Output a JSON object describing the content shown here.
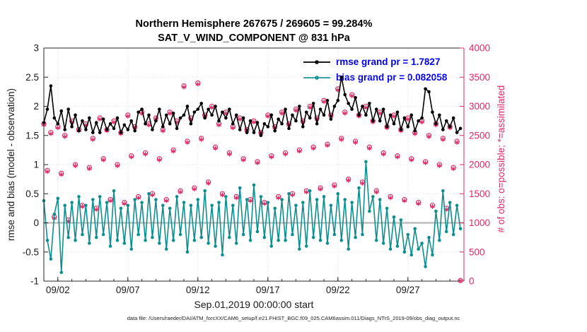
{
  "title": {
    "line1": "Northern Hemisphere 267675 / 269605 = 99.284%",
    "line2": "SAT_V_WIND_COMPONENT @ 831 hPa"
  },
  "axes_labels": {
    "left": "rmse and bias (model - observation)",
    "right": "# of obs: o=possible; *=assimilated",
    "x": "Sep.01,2019 00:00:00 start"
  },
  "legend": [
    {
      "label": "rmse grand pr = 1.7827",
      "color": "#000000"
    },
    {
      "label": "bias grand pr = 0.082058",
      "color": "#0d8f8f"
    }
  ],
  "caption": "data file: /Users/raeder/DAI/ATM_forcXX/CAM6_setup/f.e21.FHIST_BGC.f09_025.CAM6assim.011/Diags_NTrS_2019-09/obs_diag_output.nc",
  "colors": {
    "rmse": "#000000",
    "bias": "#0d8f8f",
    "obs": "#df2a68",
    "legend_text": "#0000ee",
    "zero_line": "#b8b8b8",
    "grid": "#dcdcdc",
    "axis": "#262626"
  },
  "chart_data": {
    "type": "line",
    "x_start_days": 0,
    "x_step_days": 0.25,
    "xlim": [
      0,
      30
    ],
    "xticks": {
      "positions": [
        1,
        6,
        11,
        16,
        21,
        26
      ],
      "labels": [
        "09/02",
        "09/07",
        "09/12",
        "09/17",
        "09/22",
        "09/27"
      ]
    },
    "x_minor_step": 1,
    "left_axis": {
      "lim": [
        -1,
        3
      ],
      "ticks": [
        -1,
        -0.5,
        0,
        0.5,
        1,
        1.5,
        2,
        2.5,
        3
      ],
      "tick_labels": [
        "-1",
        "-0.5",
        "0",
        "0.5",
        "1",
        "1.5",
        "2",
        "2.5",
        "3"
      ]
    },
    "right_axis": {
      "lim": [
        0,
        4000
      ],
      "ticks": [
        0,
        500,
        1000,
        1500,
        2000,
        2500,
        3000,
        3500,
        4000
      ],
      "tick_labels": [
        "0",
        "500",
        "1000",
        "1500",
        "2000",
        "2500",
        "3000",
        "3500",
        "4000"
      ]
    },
    "zero_line": 0,
    "grid": true,
    "legend_position": "upper-center-right",
    "series": [
      {
        "name": "rmse",
        "axis": "left",
        "marker": "circle-filled",
        "line": true,
        "values": [
          1.72,
          1.95,
          2.35,
          1.8,
          1.7,
          1.92,
          1.6,
          1.95,
          1.65,
          1.85,
          1.58,
          1.75,
          1.6,
          1.8,
          1.55,
          1.72,
          1.55,
          1.78,
          1.6,
          1.7,
          1.62,
          1.8,
          1.55,
          1.68,
          1.6,
          1.75,
          1.58,
          1.9,
          1.95,
          1.7,
          1.85,
          1.6,
          1.75,
          1.95,
          1.65,
          1.85,
          1.7,
          1.88,
          1.62,
          1.8,
          1.85,
          2.0,
          1.7,
          1.9,
          1.95,
          2.05,
          1.8,
          1.95,
          1.85,
          2.0,
          1.75,
          1.9,
          1.8,
          1.95,
          1.7,
          1.85,
          1.6,
          1.8,
          1.55,
          1.75,
          1.55,
          1.72,
          1.5,
          1.7,
          1.65,
          1.85,
          1.58,
          1.78,
          1.7,
          1.95,
          1.62,
          1.85,
          1.75,
          2.0,
          1.65,
          1.9,
          1.8,
          2.05,
          1.7,
          1.95,
          1.85,
          2.1,
          1.78,
          2.0,
          2.1,
          2.5,
          2.2,
          2.05,
          1.95,
          2.15,
          1.85,
          2.0,
          1.85,
          2.05,
          1.75,
          1.95,
          1.75,
          1.95,
          1.65,
          1.85,
          1.7,
          1.9,
          1.6,
          1.8,
          1.65,
          1.85,
          1.58,
          1.75,
          1.8,
          2.3,
          2.25,
          1.9,
          1.7,
          1.85,
          1.6,
          1.75,
          1.65,
          1.8,
          1.55,
          1.62
        ]
      },
      {
        "name": "bias",
        "axis": "left",
        "marker": "circle-filled",
        "line": true,
        "values": [
          0.38,
          -0.3,
          -0.62,
          0.15,
          0.42,
          -0.85,
          0.3,
          -0.25,
          0.35,
          -0.3,
          0.45,
          -0.2,
          0.3,
          -0.35,
          0.4,
          -0.25,
          0.45,
          -0.2,
          0.35,
          -0.4,
          0.55,
          -0.3,
          0.25,
          -0.35,
          0.3,
          -0.45,
          0.4,
          -0.2,
          0.35,
          -0.3,
          0.5,
          -0.25,
          0.4,
          -0.35,
          0.3,
          -0.45,
          0.25,
          -0.3,
          0.45,
          -0.2,
          0.35,
          -0.5,
          0.3,
          -0.3,
          0.4,
          -0.25,
          0.55,
          -0.35,
          0.3,
          -0.4,
          0.35,
          -0.55,
          0.45,
          -0.25,
          0.3,
          -0.35,
          0.6,
          -0.2,
          0.4,
          -0.3,
          0.65,
          -0.15,
          0.45,
          -0.25,
          0.35,
          -0.4,
          0.25,
          -0.3,
          0.4,
          -0.3,
          0.5,
          -0.2,
          0.3,
          -0.45,
          0.35,
          -0.4,
          0.55,
          -0.25,
          0.4,
          -0.3,
          0.45,
          -0.35,
          0.3,
          -0.2,
          0.5,
          -0.3,
          0.4,
          -0.45,
          0.35,
          -0.25,
          0.6,
          -0.2,
          1.05,
          0.2,
          0.45,
          -0.3,
          0.4,
          -0.35,
          0.25,
          -0.45,
          0.1,
          -0.4,
          0.05,
          -0.5,
          -0.2,
          -0.55,
          -0.1,
          -0.45,
          -0.35,
          -0.75,
          -0.25,
          -0.55,
          0.2,
          -0.3,
          0.55,
          -0.15,
          0.35,
          -0.2,
          0.3,
          -0.1
        ]
      },
      {
        "name": "possible",
        "axis": "right",
        "marker": "circle-open",
        "line": false,
        "values": [
          2700,
          1900,
          2550,
          1100,
          2650,
          1850,
          2500,
          1050,
          2750,
          2000,
          2600,
          1300,
          2700,
          1950,
          2450,
          1250,
          2800,
          2100,
          2600,
          1400,
          2750,
          2000,
          2550,
          1350,
          2850,
          2150,
          2650,
          1450,
          2900,
          2200,
          2700,
          1500,
          2800,
          2100,
          2600,
          1400,
          2900,
          2250,
          2750,
          1550,
          3350,
          2400,
          2800,
          1600,
          3400,
          2450,
          2850,
          1700,
          3000,
          2300,
          2700,
          1500,
          2900,
          2200,
          2650,
          1450,
          2800,
          2100,
          2600,
          1400,
          2750,
          2050,
          2550,
          1350,
          2850,
          2150,
          2650,
          1450,
          2900,
          2200,
          2700,
          1500,
          2950,
          2250,
          2750,
          1550,
          3000,
          2300,
          2800,
          1600,
          3100,
          2350,
          2850,
          1650,
          3300,
          2450,
          2900,
          1750,
          3200,
          2400,
          2850,
          1700,
          3000,
          2300,
          2750,
          1550,
          2900,
          2200,
          2650,
          1450,
          2850,
          2150,
          2600,
          1400,
          2800,
          2100,
          2550,
          1350,
          2750,
          2050,
          2500,
          1300,
          2700,
          2000,
          2450,
          1250,
          2650,
          1950,
          2400,
          10
        ]
      },
      {
        "name": "assimilated",
        "axis": "right",
        "marker": "asterisk",
        "line": false,
        "values": [
          2680,
          1880,
          2530,
          1080,
          2630,
          1830,
          2480,
          1030,
          2730,
          1980,
          2580,
          1280,
          2680,
          1930,
          2430,
          1230,
          2780,
          2080,
          2580,
          1380,
          2730,
          1980,
          2530,
          1330,
          2830,
          2130,
          2630,
          1430,
          2880,
          2180,
          2680,
          1480,
          2780,
          2080,
          2580,
          1380,
          2880,
          2230,
          2730,
          1530,
          3330,
          2380,
          2780,
          1580,
          3380,
          2430,
          2830,
          1680,
          2980,
          2280,
          2680,
          1480,
          2880,
          2180,
          2630,
          1430,
          2780,
          2080,
          2580,
          1380,
          2730,
          2030,
          2530,
          1330,
          2830,
          2130,
          2630,
          1430,
          2880,
          2180,
          2680,
          1480,
          2930,
          2230,
          2730,
          1530,
          2980,
          2280,
          2780,
          1580,
          3080,
          2330,
          2830,
          1630,
          3280,
          2430,
          2880,
          1730,
          3180,
          2380,
          2830,
          1680,
          2980,
          2280,
          2730,
          1530,
          2880,
          2180,
          2630,
          1430,
          2830,
          2130,
          2580,
          1380,
          2780,
          2080,
          2530,
          1330,
          2730,
          2030,
          2480,
          1280,
          2680,
          1980,
          2430,
          1230,
          2630,
          1930,
          2380,
          8
        ]
      }
    ]
  }
}
